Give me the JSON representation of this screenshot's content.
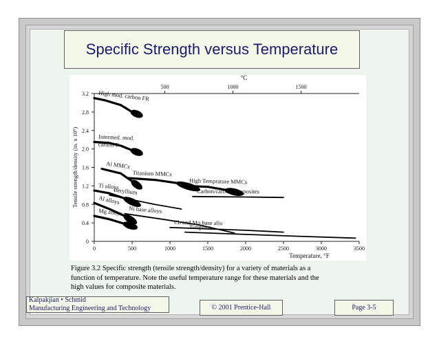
{
  "slide": {
    "title": "Specific Strength versus Temperature",
    "caption_lines": [
      "Figure 3.2  Specific strength (tensile strength/density) for a variety of materials as a",
      "function of temperature.  Note the useful temperature range for these materials and the",
      "high values for composite materials."
    ],
    "footer": {
      "author_line1": "Kalpakjian • Schmid",
      "author_line2": "Manufacturing Engineering and Technology",
      "copyright": "© 2001 Prentice-Hall",
      "page": "Page 3-5"
    }
  },
  "chart_data": {
    "type": "line",
    "title": "",
    "xlabel": "Temperature,   °F",
    "x2label": "°C",
    "ylabel": "Tensile  strength/density  (in.  x  10⁶)",
    "xlim": [
      0,
      3500
    ],
    "ylim": [
      0,
      3.2
    ],
    "xticks": [
      "0",
      "500",
      "1000",
      "1500",
      "2000",
      "2500",
      "3000",
      "3500"
    ],
    "x2ticks": [
      "500",
      "1000",
      "1500"
    ],
    "x2tick_values_C": [
      500,
      1000,
      1500
    ],
    "yticks": [
      "0",
      "0.4",
      "0.8",
      "1.2",
      "1.6",
      "2.0",
      "2.4",
      "2.8",
      "3.2"
    ],
    "grid": false,
    "series": [
      {
        "name": "High  mod.  carbon  FR",
        "label_lines": [
          "High  mod.  carbon  FR"
        ],
        "x": [
          0,
          150,
          350,
          500,
          620
        ],
        "y": [
          3.1,
          3.05,
          2.95,
          2.8,
          2.72
        ],
        "band": true
      },
      {
        "name": "Intermed.  mod.  carbon  F",
        "label_lines": [
          "Intermed.  mod.",
          "carbon  F"
        ],
        "x": [
          0,
          200,
          350,
          500,
          620
        ],
        "y": [
          2.15,
          2.13,
          2.07,
          1.97,
          1.9
        ],
        "band": true
      },
      {
        "name": "Al  MMCs",
        "label_lines": [
          "Al  MMCs"
        ],
        "x": [
          100,
          350,
          500,
          620
        ],
        "y": [
          1.57,
          1.47,
          1.3,
          1.15
        ],
        "band": true
      },
      {
        "name": "Titanium  MMCs",
        "label_lines": [
          "Titanium  MMCs"
        ],
        "x": [
          450,
          800,
          1100,
          1380
        ],
        "y": [
          1.37,
          1.33,
          1.26,
          1.12
        ],
        "band": true
      },
      {
        "name": "High  Temprature  MMCs",
        "label_lines": [
          "High  Temprature  MMCs"
        ],
        "x": [
          1200,
          1500,
          1750,
          1950
        ],
        "y": [
          1.2,
          1.18,
          1.11,
          1.03
        ],
        "band": true
      },
      {
        "name": "Carbon/carbon  composites",
        "label_lines": [
          "Carbon/carbon  composites"
        ],
        "x": [
          1300,
          2000,
          2500
        ],
        "y": [
          0.97,
          0.96,
          0.95
        ],
        "band": false
      },
      {
        "name": "Ti  alloys",
        "label_lines": [
          "Ti  alloys"
        ],
        "x": [
          0,
          200,
          400,
          600
        ],
        "y": [
          1.1,
          1.04,
          0.93,
          0.78
        ],
        "band": true
      },
      {
        "name": "Beryllium",
        "label_lines": [
          "Beryllium"
        ],
        "x": [
          200,
          500,
          800,
          1150
        ],
        "y": [
          1.0,
          0.9,
          0.8,
          0.7
        ],
        "band": false
      },
      {
        "name": "Al  alloys",
        "label_lines": [
          "Al  alloys"
        ],
        "x": [
          0,
          200,
          400,
          550
        ],
        "y": [
          0.83,
          0.7,
          0.55,
          0.4
        ],
        "band": true
      },
      {
        "name": "Mg  alloys",
        "label_lines": [
          "Mg  alloys"
        ],
        "x": [
          0,
          200,
          400,
          550
        ],
        "y": [
          0.55,
          0.48,
          0.38,
          0.3
        ],
        "band": true
      },
      {
        "name": "Ni  base  alloys",
        "label_lines": [
          "Ni  base  alloys"
        ],
        "x": [
          400,
          900,
          1400,
          1850
        ],
        "y": [
          0.6,
          0.48,
          0.35,
          0.18
        ],
        "band": false
      },
      {
        "name": "Cb  and  Mo  base  allo",
        "label_lines": [
          "Cb  and  Mo  base  allo"
        ],
        "x": [
          1000,
          1500,
          2000,
          2500
        ],
        "y": [
          0.3,
          0.27,
          0.24,
          0.2
        ],
        "band": false
      },
      {
        "name": "Tungsten",
        "label_lines": [
          "Tungsten"
        ],
        "x": [
          1200,
          2000,
          2700,
          3450
        ],
        "y": [
          0.2,
          0.15,
          0.11,
          0.07
        ],
        "band": false
      }
    ]
  }
}
